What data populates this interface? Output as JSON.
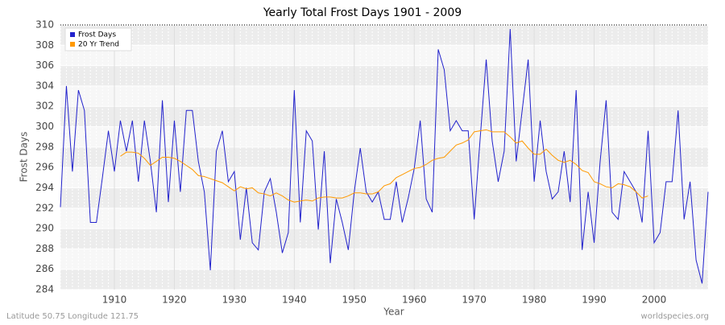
{
  "chart_data": {
    "type": "line",
    "title": "Yearly Total Frost Days 1901 - 2009",
    "x_label": "Year",
    "y_label": "Frost Days",
    "footer_left": "Latitude 50.75 Longitude 121.75",
    "footer_right": "worldspecies.org",
    "x": [
      1901,
      1902,
      1903,
      1904,
      1905,
      1906,
      1907,
      1908,
      1909,
      1910,
      1911,
      1912,
      1913,
      1914,
      1915,
      1916,
      1917,
      1918,
      1919,
      1920,
      1921,
      1922,
      1923,
      1924,
      1925,
      1926,
      1927,
      1928,
      1929,
      1930,
      1931,
      1932,
      1933,
      1934,
      1935,
      1936,
      1937,
      1938,
      1939,
      1940,
      1941,
      1942,
      1943,
      1944,
      1945,
      1946,
      1947,
      1948,
      1949,
      1950,
      1951,
      1952,
      1953,
      1954,
      1955,
      1956,
      1957,
      1958,
      1959,
      1960,
      1961,
      1962,
      1963,
      1964,
      1965,
      1966,
      1967,
      1968,
      1969,
      1970,
      1971,
      1972,
      1973,
      1974,
      1975,
      1976,
      1977,
      1978,
      1979,
      1980,
      1981,
      1982,
      1983,
      1984,
      1985,
      1986,
      1987,
      1988,
      1989,
      1990,
      1991,
      1992,
      1993,
      1994,
      1995,
      1996,
      1997,
      1998,
      1999,
      2000,
      2001,
      2002,
      2003,
      2004,
      2005,
      2006,
      2007,
      2008,
      2009
    ],
    "series": [
      {
        "name": "Frost Days",
        "color": "#2222cc",
        "values": [
          292.1,
          304,
          295.6,
          303.6,
          301.6,
          290.6,
          290.6,
          295,
          299.6,
          295.6,
          300.6,
          297.6,
          300.6,
          294.6,
          300.6,
          296.6,
          291.6,
          302.6,
          292.6,
          300.6,
          293.6,
          301.6,
          301.6,
          296.6,
          293.6,
          285.9,
          297.6,
          299.6,
          294.6,
          295.6,
          288.9,
          294,
          288.6,
          287.9,
          293.6,
          294.9,
          291.6,
          287.6,
          289.6,
          303.6,
          290.6,
          299.6,
          298.6,
          289.9,
          297.6,
          286.6,
          292.9,
          290.6,
          287.9,
          293.6,
          297.9,
          293.6,
          292.6,
          293.6,
          290.9,
          290.9,
          294.6,
          290.6,
          293,
          295.9,
          300.6,
          292.9,
          291.6,
          307.6,
          305.6,
          299.6,
          300.6,
          299.6,
          299.6,
          290.9,
          298.9,
          306.6,
          298.6,
          294.6,
          297.6,
          309.6,
          296.6,
          301.6,
          306.6,
          294.6,
          300.6,
          295.6,
          292.9,
          293.6,
          297.6,
          292.6,
          303.6,
          287.9,
          293.6,
          288.6,
          296.6,
          302.6,
          291.6,
          290.9,
          295.6,
          294.6,
          293.6,
          290.6,
          299.6,
          288.6,
          289.6,
          294.6,
          294.6,
          301.6,
          290.9,
          294.6,
          286.9,
          284.6,
          293.6
        ]
      },
      {
        "name": "20 Yr Trend",
        "color": "#ff9900",
        "values": [
          null,
          null,
          null,
          null,
          null,
          null,
          null,
          null,
          null,
          null,
          297.1,
          297.5,
          297.5,
          297.4,
          296.9,
          296.2,
          296.6,
          297,
          297,
          296.9,
          296.6,
          296.2,
          295.8,
          295.2,
          295.1,
          294.9,
          294.7,
          294.5,
          294.1,
          293.7,
          294.1,
          293.9,
          294,
          293.5,
          293.4,
          293.2,
          293.5,
          293.2,
          292.8,
          292.6,
          292.7,
          292.8,
          292.7,
          293,
          293.1,
          293.1,
          293,
          293,
          293.2,
          293.5,
          293.5,
          293.4,
          293.4,
          293.6,
          294.2,
          294.4,
          295,
          295.3,
          295.6,
          295.9,
          296,
          296.3,
          296.7,
          296.9,
          297,
          297.6,
          298.2,
          298.4,
          298.7,
          299.5,
          299.6,
          299.7,
          299.5,
          299.5,
          299.5,
          299,
          298.4,
          298.6,
          297.9,
          297.3,
          297.3,
          297.8,
          297.2,
          296.7,
          296.5,
          296.7,
          296.3,
          295.7,
          295.5,
          294.6,
          294.4,
          294.1,
          294,
          294.4,
          294.3,
          294.1,
          293.6,
          293,
          293.2,
          null,
          null,
          null,
          null,
          null,
          null,
          null,
          null,
          null,
          null
        ]
      }
    ],
    "xlim": [
      1901,
      2009
    ],
    "xticks": [
      1910,
      1920,
      1930,
      1940,
      1950,
      1960,
      1970,
      1980,
      1990,
      2000
    ],
    "ylim": [
      284,
      310
    ],
    "yticks": [
      284,
      286,
      288,
      290,
      292,
      294,
      296,
      298,
      300,
      302,
      304,
      306,
      308,
      310
    ],
    "grid": true,
    "legend": "top-left"
  }
}
